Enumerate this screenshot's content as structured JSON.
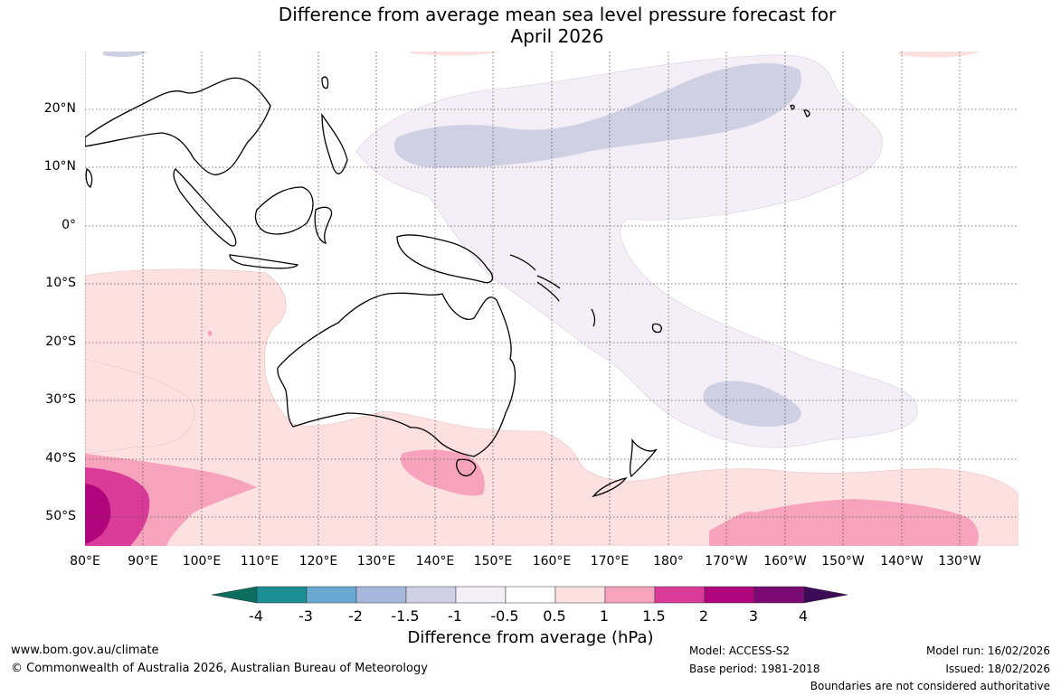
{
  "title": {
    "line1": "Difference from average mean sea level pressure forecast for",
    "line2": "April 2026"
  },
  "map": {
    "lat_labels": [
      "20°N",
      "10°N",
      "0°",
      "10°S",
      "20°S",
      "30°S",
      "40°S",
      "50°S"
    ],
    "lon_labels": [
      "80°E",
      "90°E",
      "100°E",
      "110°E",
      "120°E",
      "130°E",
      "140°E",
      "150°E",
      "160°E",
      "170°E",
      "180°",
      "170°W",
      "160°W",
      "150°W",
      "140°W",
      "130°W"
    ],
    "lat_range": [
      -55,
      30
    ],
    "lon_range": [
      80,
      240
    ]
  },
  "colorbar": {
    "ticks": [
      "-4",
      "-3",
      "-2",
      "-1.5",
      "-1",
      "-0.5",
      "0.5",
      "1",
      "1.5",
      "2",
      "3",
      "4"
    ],
    "colors": [
      "#0b6e5f",
      "#1b8f94",
      "#6aaad2",
      "#a8b8dc",
      "#cfd0e4",
      "#f4eef7",
      "#ffffff",
      "#fde0e0",
      "#f7a3bd",
      "#da3a98",
      "#b0057d",
      "#7c0a75",
      "#3c0b55"
    ],
    "label": "Difference from average (hPa)"
  },
  "footer": {
    "website": "www.bom.gov.au/climate",
    "copyright": "© Commonwealth of Australia 2026, Australian Bureau of Meteorology",
    "model": "Model: ACCESS-S2",
    "base_period": "Base period: 1981-2018",
    "model_run": "Model run: 16/02/2026",
    "issued": "Issued: 18/02/2026",
    "disclaimer": "Boundaries are not considered authoritative"
  }
}
